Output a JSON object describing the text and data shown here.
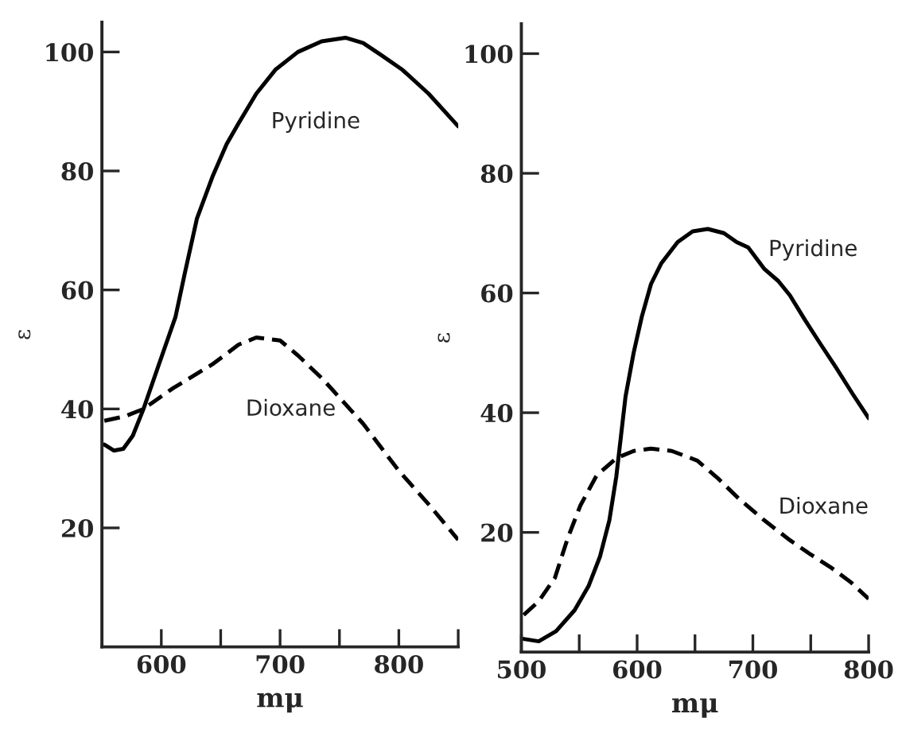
{
  "chart_data": [
    {
      "type": "line",
      "xlabel": "mμ",
      "ylabel": "ε",
      "xlim": [
        550,
        850
      ],
      "ylim": [
        0,
        105
      ],
      "xticks": [
        600,
        {
          "value": 650,
          "label": null
        },
        700,
        {
          "value": 750,
          "label": null
        },
        800,
        {
          "value": 850,
          "label": null
        }
      ],
      "yticks": [
        20,
        40,
        60,
        80,
        100
      ],
      "grid": false,
      "legend": false,
      "series": [
        {
          "color": "#000000",
          "line_style": "solid",
          "x": [
            552,
            560,
            568,
            576,
            585,
            598,
            612,
            620,
            630,
            643,
            655,
            665,
            680,
            696,
            715,
            735,
            755,
            770,
            785,
            803,
            825,
            850
          ],
          "values": [
            34,
            33,
            33.3,
            35.5,
            40,
            47.5,
            55.5,
            63,
            72,
            79,
            84.5,
            88,
            93,
            97,
            100,
            101.8,
            102.4,
            101.5,
            99.5,
            97,
            93,
            87.5
          ]
        },
        {
          "color": "#000000",
          "line_style": "dashed",
          "x": [
            552,
            570,
            585,
            610,
            643,
            665,
            680,
            700,
            715,
            736,
            770,
            800,
            825,
            850
          ],
          "values": [
            38,
            38.8,
            40,
            43.5,
            47.5,
            50.8,
            52,
            51.5,
            49,
            45,
            37.5,
            29.6,
            24,
            18
          ]
        }
      ],
      "annotations": [
        "Pyridine",
        "Dioxane"
      ]
    },
    {
      "type": "line",
      "xlabel": "mμ",
      "ylabel": "ε",
      "xlim": [
        500,
        800
      ],
      "ylim": [
        0,
        105
      ],
      "xticks": [
        500,
        {
          "value": 550,
          "label": null
        },
        600,
        {
          "value": 650,
          "label": null
        },
        700,
        {
          "value": 750,
          "label": null
        },
        800
      ],
      "yticks": [
        20,
        40,
        60,
        80,
        100
      ],
      "grid": false,
      "legend": false,
      "series": [
        {
          "color": "#000000",
          "line_style": "solid",
          "x": [
            502,
            515,
            530,
            546,
            558,
            568,
            576,
            582,
            586,
            590,
            597,
            604,
            612,
            621,
            635,
            648,
            661,
            675,
            686,
            696,
            710,
            722,
            732,
            745,
            758,
            772,
            786,
            800
          ],
          "values": [
            2.2,
            1.8,
            3.5,
            7,
            11,
            16,
            22,
            29.3,
            36,
            42.7,
            50,
            56,
            61.5,
            65,
            68.5,
            70.3,
            70.7,
            70,
            68.5,
            67.6,
            64,
            62,
            59.6,
            55.5,
            51.6,
            47.5,
            43.2,
            39.1
          ]
        },
        {
          "color": "#000000",
          "line_style": "dashed",
          "x": [
            502,
            515,
            529,
            540,
            551,
            565,
            582,
            597,
            612,
            630,
            652,
            670,
            687,
            710,
            732,
            750,
            767,
            785,
            800
          ],
          "values": [
            6.2,
            8.5,
            12.4,
            19,
            24.5,
            29.5,
            32.4,
            33.6,
            34,
            33.6,
            32,
            29,
            25.8,
            22,
            18.7,
            16.3,
            14.2,
            11.6,
            8.9
          ]
        }
      ],
      "annotations": [
        "Pyridine",
        "Dioxane"
      ]
    }
  ]
}
